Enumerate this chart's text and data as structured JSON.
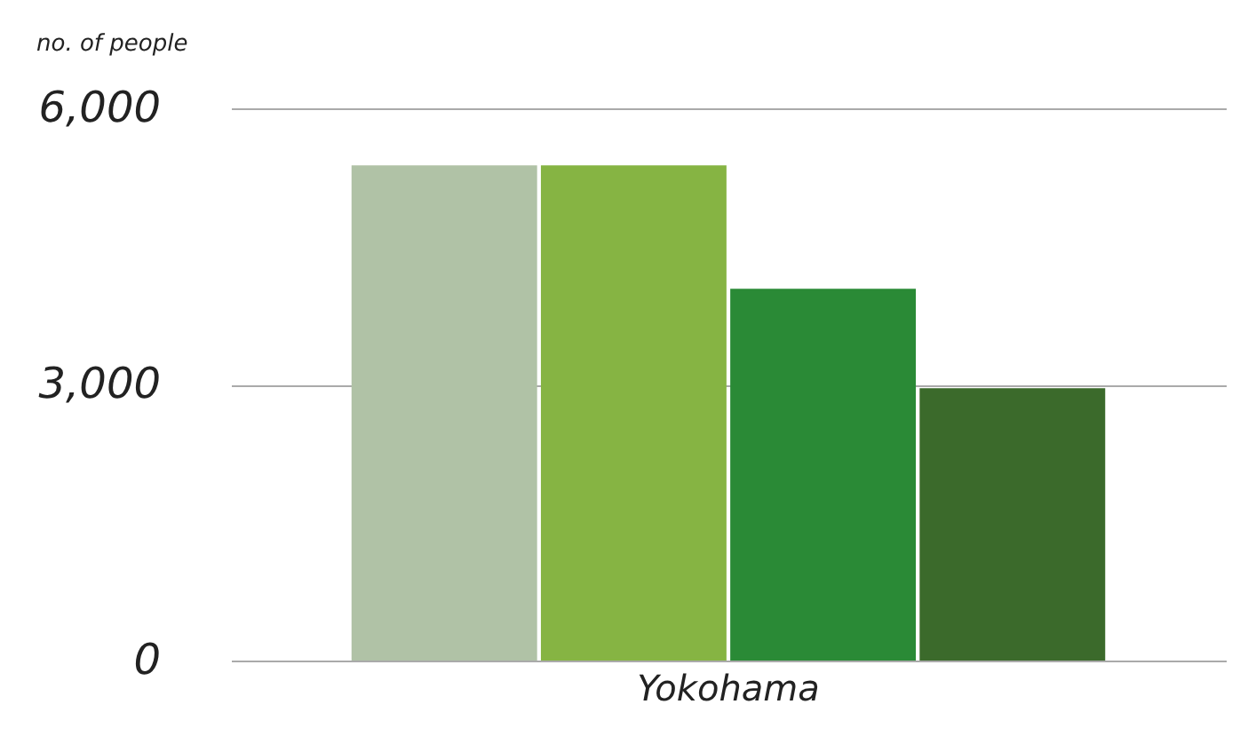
{
  "chart_data": {
    "type": "bar",
    "ylabel": "no. of people",
    "categories": [
      "Yokohama"
    ],
    "series": [
      {
        "color": "#b0c2a6",
        "values": [
          5380
        ]
      },
      {
        "color": "#86b443",
        "values": [
          5380
        ]
      },
      {
        "color": "#2a8a36",
        "values": [
          4040
        ]
      },
      {
        "color": "#3b6a2b",
        "values": [
          2960
        ]
      }
    ],
    "ylim": [
      0,
      6000
    ],
    "yticks": [
      {
        "value": 0,
        "label": "0"
      },
      {
        "value": 3000,
        "label": "3,000"
      },
      {
        "value": 6000,
        "label": "6,000"
      }
    ],
    "grid": "y"
  }
}
